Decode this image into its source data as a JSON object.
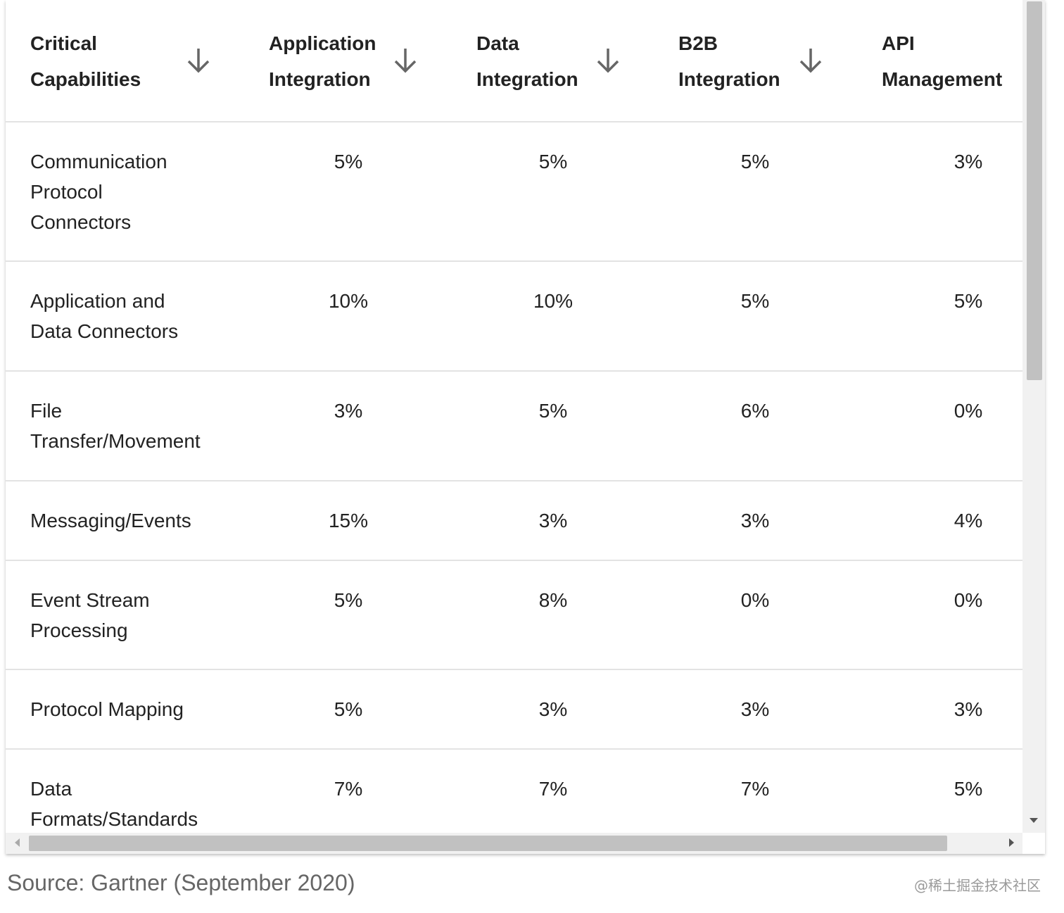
{
  "table": {
    "header": [
      [
        "Critical",
        "Capabilities"
      ],
      [
        "Application",
        "Integration"
      ],
      [
        "Data",
        "Integration"
      ],
      [
        "B2B",
        "Integration"
      ],
      [
        "API",
        "Management"
      ]
    ],
    "rows": [
      [
        [
          "Communication",
          "Protocol",
          "Connectors"
        ],
        "5%",
        "5%",
        "5%",
        "3%"
      ],
      [
        [
          "Application and",
          "Data Connectors"
        ],
        "10%",
        "10%",
        "5%",
        "5%"
      ],
      [
        [
          "File",
          "Transfer/Movement"
        ],
        "3%",
        "5%",
        "6%",
        "0%"
      ],
      [
        [
          "Messaging/Events"
        ],
        "15%",
        "3%",
        "3%",
        "4%"
      ],
      [
        [
          "Event Stream",
          "Processing"
        ],
        "5%",
        "8%",
        "0%",
        "0%"
      ],
      [
        [
          "Protocol Mapping"
        ],
        "5%",
        "3%",
        "3%",
        "3%"
      ],
      [
        [
          "Data",
          "Formats/Standards"
        ],
        "7%",
        "7%",
        "7%",
        "5%"
      ]
    ]
  },
  "source": "Source: Gartner (September 2020)",
  "watermark": "@稀土掘金技术社区"
}
